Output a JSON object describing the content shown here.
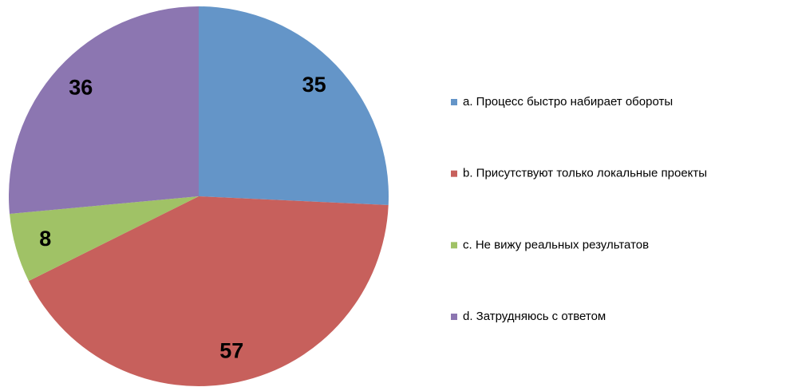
{
  "chart_data": {
    "type": "pie",
    "categories": [
      "a. Процесс быстро набирает обороты",
      "b. Присутствуют только локальные проекты",
      "c. Не вижу реальных результатов",
      "d. Затрудняюсь с ответом"
    ],
    "values": [
      35,
      57,
      8,
      36
    ],
    "colors": [
      "#6495c8",
      "#c7605c",
      "#a0c266",
      "#8c76b1"
    ],
    "legend": "right"
  }
}
